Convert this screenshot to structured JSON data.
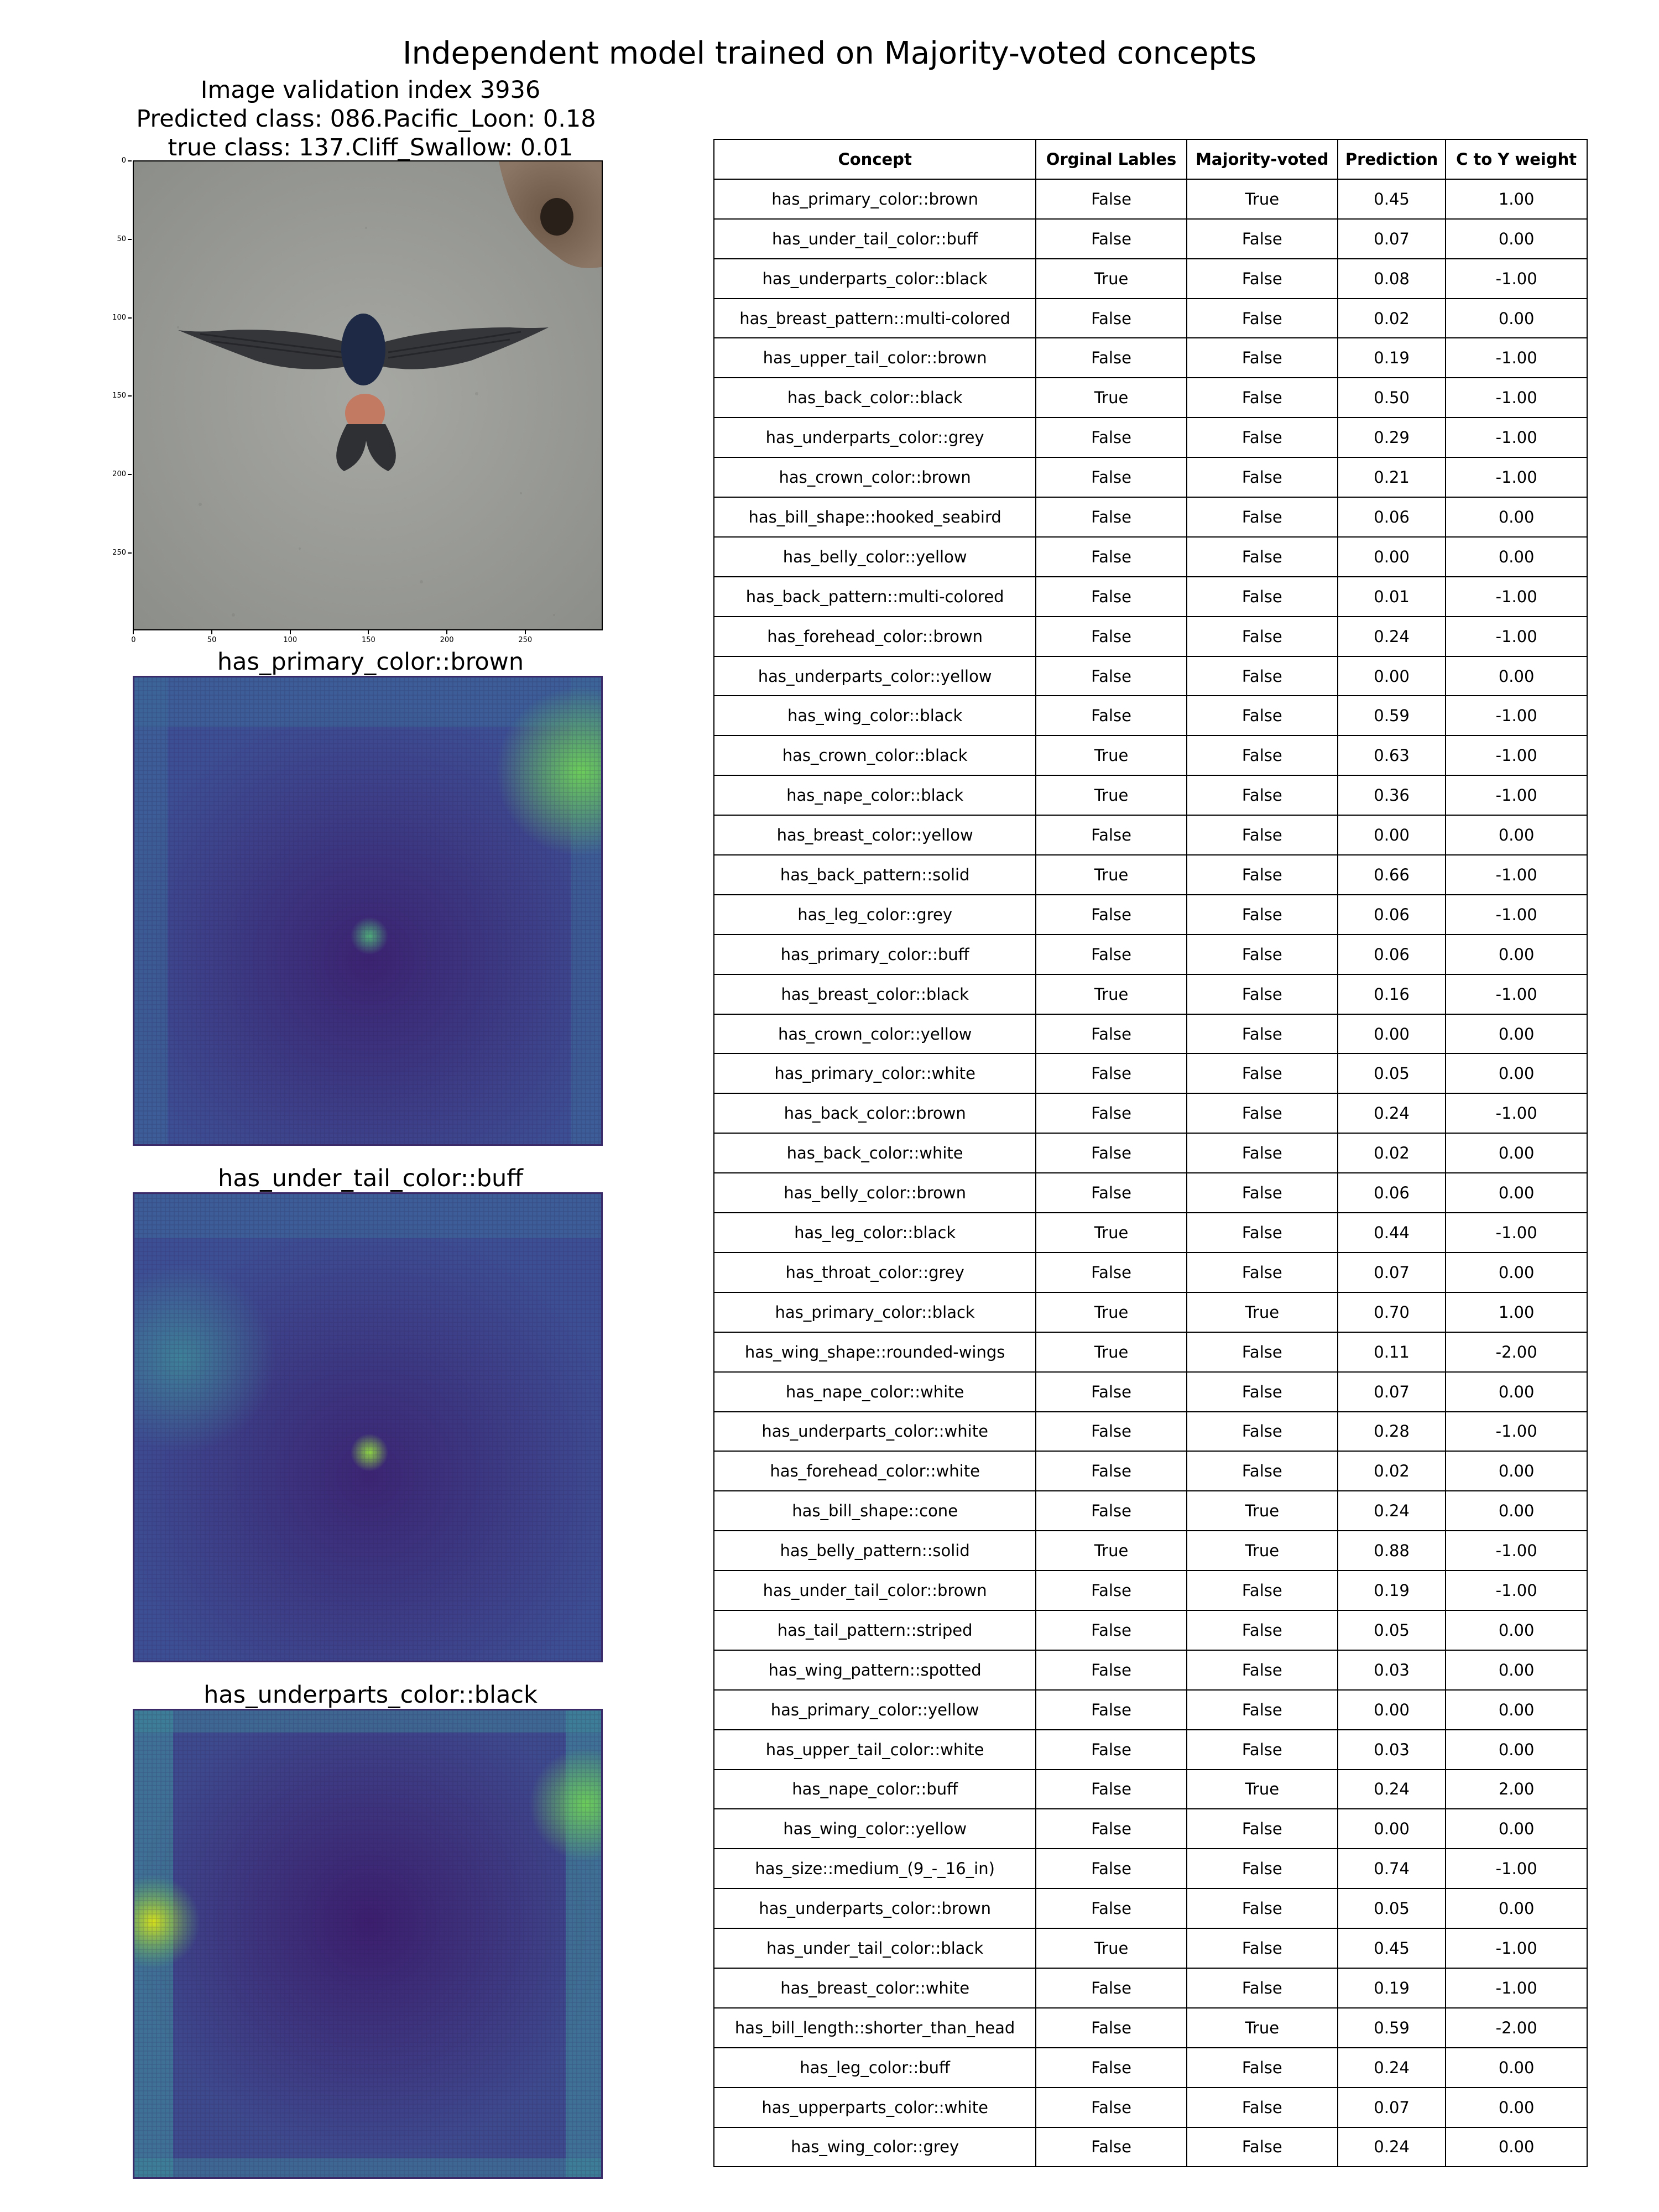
{
  "figure": {
    "suptitle": "Independent model trained on Majority-voted concepts",
    "image_header": {
      "line1": "Image validation index 3936",
      "line2": "Predicted class: 086.Pacific_Loon: 0.18",
      "line3": "true class: 137.Cliff_Swallow: 0.01"
    },
    "image_axis": {
      "y_ticks": [
        "0",
        "50",
        "100",
        "150",
        "200",
        "250"
      ],
      "x_ticks": [
        "0",
        "50",
        "100",
        "150",
        "200",
        "250"
      ]
    },
    "heatmaps": [
      {
        "title": "has_primary_color::brown"
      },
      {
        "title": "has_under_tail_color::buff"
      },
      {
        "title": "has_underparts_color::black"
      }
    ],
    "colors": {
      "heat_low": "#3b1f6b",
      "heat_mid": "#3b5a9a",
      "heat_high": "#5ec962",
      "heat_peak": "#fde725"
    }
  },
  "chart_data": {
    "type": "table",
    "columns": [
      "Concept",
      "Orginal Lables",
      "Majority-voted",
      "Prediction",
      "C to Y weight"
    ],
    "rows": [
      [
        "has_primary_color::brown",
        "False",
        "True",
        "0.45",
        "1.00"
      ],
      [
        "has_under_tail_color::buff",
        "False",
        "False",
        "0.07",
        "0.00"
      ],
      [
        "has_underparts_color::black",
        "True",
        "False",
        "0.08",
        "-1.00"
      ],
      [
        "has_breast_pattern::multi-colored",
        "False",
        "False",
        "0.02",
        "0.00"
      ],
      [
        "has_upper_tail_color::brown",
        "False",
        "False",
        "0.19",
        "-1.00"
      ],
      [
        "has_back_color::black",
        "True",
        "False",
        "0.50",
        "-1.00"
      ],
      [
        "has_underparts_color::grey",
        "False",
        "False",
        "0.29",
        "-1.00"
      ],
      [
        "has_crown_color::brown",
        "False",
        "False",
        "0.21",
        "-1.00"
      ],
      [
        "has_bill_shape::hooked_seabird",
        "False",
        "False",
        "0.06",
        "0.00"
      ],
      [
        "has_belly_color::yellow",
        "False",
        "False",
        "0.00",
        "0.00"
      ],
      [
        "has_back_pattern::multi-colored",
        "False",
        "False",
        "0.01",
        "-1.00"
      ],
      [
        "has_forehead_color::brown",
        "False",
        "False",
        "0.24",
        "-1.00"
      ],
      [
        "has_underparts_color::yellow",
        "False",
        "False",
        "0.00",
        "0.00"
      ],
      [
        "has_wing_color::black",
        "False",
        "False",
        "0.59",
        "-1.00"
      ],
      [
        "has_crown_color::black",
        "True",
        "False",
        "0.63",
        "-1.00"
      ],
      [
        "has_nape_color::black",
        "True",
        "False",
        "0.36",
        "-1.00"
      ],
      [
        "has_breast_color::yellow",
        "False",
        "False",
        "0.00",
        "0.00"
      ],
      [
        "has_back_pattern::solid",
        "True",
        "False",
        "0.66",
        "-1.00"
      ],
      [
        "has_leg_color::grey",
        "False",
        "False",
        "0.06",
        "-1.00"
      ],
      [
        "has_primary_color::buff",
        "False",
        "False",
        "0.06",
        "0.00"
      ],
      [
        "has_breast_color::black",
        "True",
        "False",
        "0.16",
        "-1.00"
      ],
      [
        "has_crown_color::yellow",
        "False",
        "False",
        "0.00",
        "0.00"
      ],
      [
        "has_primary_color::white",
        "False",
        "False",
        "0.05",
        "0.00"
      ],
      [
        "has_back_color::brown",
        "False",
        "False",
        "0.24",
        "-1.00"
      ],
      [
        "has_back_color::white",
        "False",
        "False",
        "0.02",
        "0.00"
      ],
      [
        "has_belly_color::brown",
        "False",
        "False",
        "0.06",
        "0.00"
      ],
      [
        "has_leg_color::black",
        "True",
        "False",
        "0.44",
        "-1.00"
      ],
      [
        "has_throat_color::grey",
        "False",
        "False",
        "0.07",
        "0.00"
      ],
      [
        "has_primary_color::black",
        "True",
        "True",
        "0.70",
        "1.00"
      ],
      [
        "has_wing_shape::rounded-wings",
        "True",
        "False",
        "0.11",
        "-2.00"
      ],
      [
        "has_nape_color::white",
        "False",
        "False",
        "0.07",
        "0.00"
      ],
      [
        "has_underparts_color::white",
        "False",
        "False",
        "0.28",
        "-1.00"
      ],
      [
        "has_forehead_color::white",
        "False",
        "False",
        "0.02",
        "0.00"
      ],
      [
        "has_bill_shape::cone",
        "False",
        "True",
        "0.24",
        "0.00"
      ],
      [
        "has_belly_pattern::solid",
        "True",
        "True",
        "0.88",
        "-1.00"
      ],
      [
        "has_under_tail_color::brown",
        "False",
        "False",
        "0.19",
        "-1.00"
      ],
      [
        "has_tail_pattern::striped",
        "False",
        "False",
        "0.05",
        "0.00"
      ],
      [
        "has_wing_pattern::spotted",
        "False",
        "False",
        "0.03",
        "0.00"
      ],
      [
        "has_primary_color::yellow",
        "False",
        "False",
        "0.00",
        "0.00"
      ],
      [
        "has_upper_tail_color::white",
        "False",
        "False",
        "0.03",
        "0.00"
      ],
      [
        "has_nape_color::buff",
        "False",
        "True",
        "0.24",
        "2.00"
      ],
      [
        "has_wing_color::yellow",
        "False",
        "False",
        "0.00",
        "0.00"
      ],
      [
        "has_size::medium_(9_-_16_in)",
        "False",
        "False",
        "0.74",
        "-1.00"
      ],
      [
        "has_underparts_color::brown",
        "False",
        "False",
        "0.05",
        "0.00"
      ],
      [
        "has_under_tail_color::black",
        "True",
        "False",
        "0.45",
        "-1.00"
      ],
      [
        "has_breast_color::white",
        "False",
        "False",
        "0.19",
        "-1.00"
      ],
      [
        "has_bill_length::shorter_than_head",
        "False",
        "True",
        "0.59",
        "-2.00"
      ],
      [
        "has_leg_color::buff",
        "False",
        "False",
        "0.24",
        "0.00"
      ],
      [
        "has_upperparts_color::white",
        "False",
        "False",
        "0.07",
        "0.00"
      ],
      [
        "has_wing_color::grey",
        "False",
        "False",
        "0.24",
        "0.00"
      ]
    ]
  }
}
